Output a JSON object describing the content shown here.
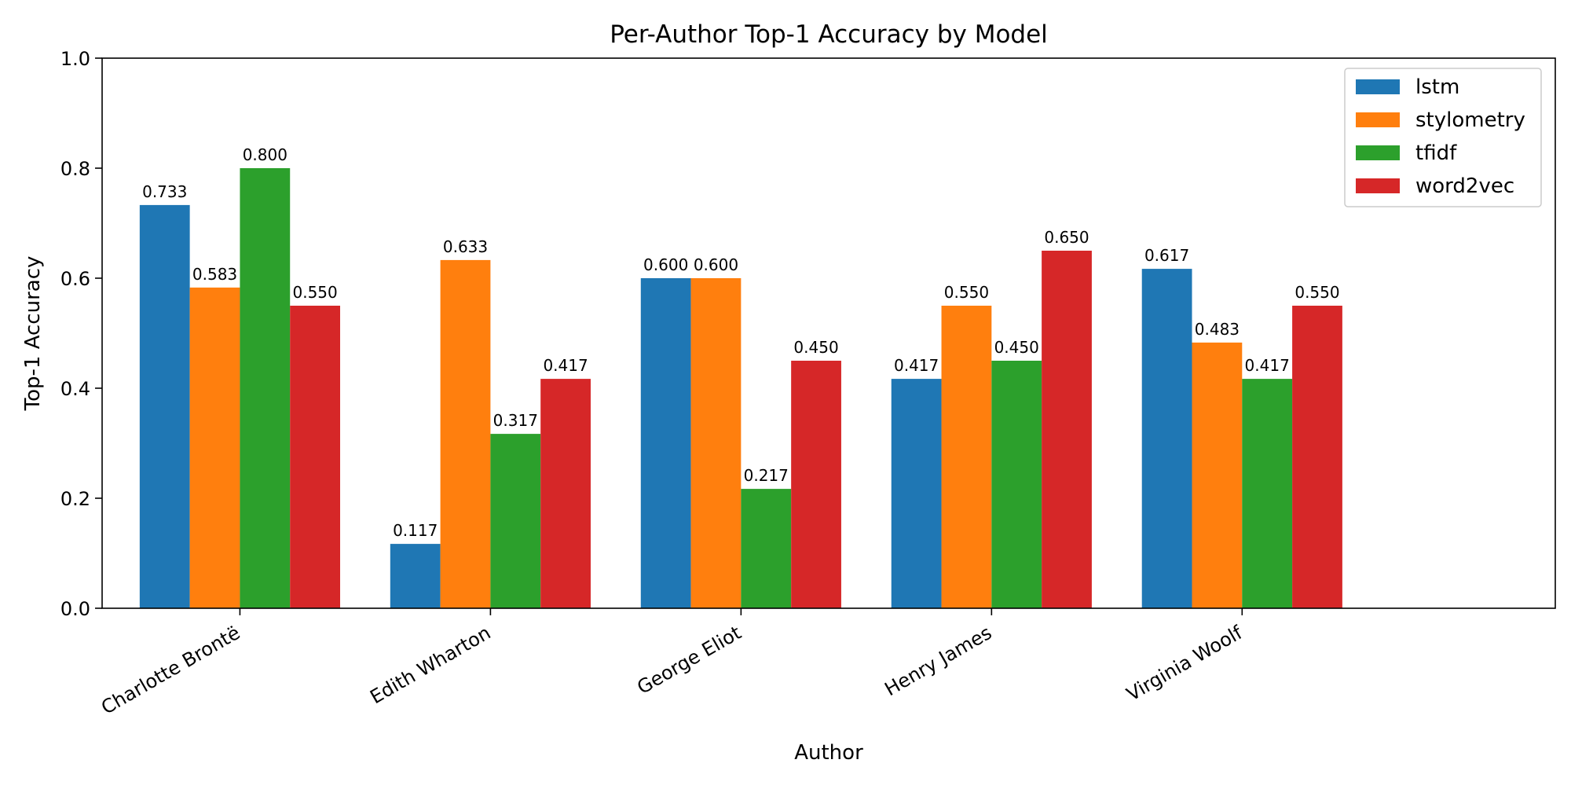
{
  "chart_data": {
    "type": "bar",
    "title": "Per-Author Top-1 Accuracy by Model",
    "xlabel": "Author",
    "ylabel": "Top-1 Accuracy",
    "ylim": [
      0,
      1.0
    ],
    "yticks": [
      0.0,
      0.2,
      0.4,
      0.6,
      0.8,
      1.0
    ],
    "ytick_labels": [
      "0.0",
      "0.2",
      "0.4",
      "0.6",
      "0.8",
      "1.0"
    ],
    "categories": [
      "Charlotte Brontë",
      "Edith Wharton",
      "George Eliot",
      "Henry James",
      "Virginia Woolf"
    ],
    "series": [
      {
        "name": "lstm",
        "color": "#1f77b4",
        "values": [
          0.733,
          0.117,
          0.6,
          0.417,
          0.617
        ],
        "labels": [
          "0.733",
          "0.117",
          "0.600",
          "0.417",
          "0.617"
        ]
      },
      {
        "name": "stylometry",
        "color": "#ff7f0e",
        "values": [
          0.583,
          0.633,
          0.6,
          0.55,
          0.483
        ],
        "labels": [
          "0.583",
          "0.633",
          "0.600",
          "0.550",
          "0.483"
        ]
      },
      {
        "name": "tfidf",
        "color": "#2ca02c",
        "values": [
          0.8,
          0.317,
          0.217,
          0.45,
          0.417
        ],
        "labels": [
          "0.800",
          "0.317",
          "0.217",
          "0.450",
          "0.417"
        ]
      },
      {
        "name": "word2vec",
        "color": "#d62728",
        "values": [
          0.55,
          0.417,
          0.45,
          0.65,
          0.55
        ],
        "labels": [
          "0.550",
          "0.417",
          "0.450",
          "0.650",
          "0.550"
        ]
      }
    ],
    "legend_position": "top-right",
    "grid": false
  }
}
